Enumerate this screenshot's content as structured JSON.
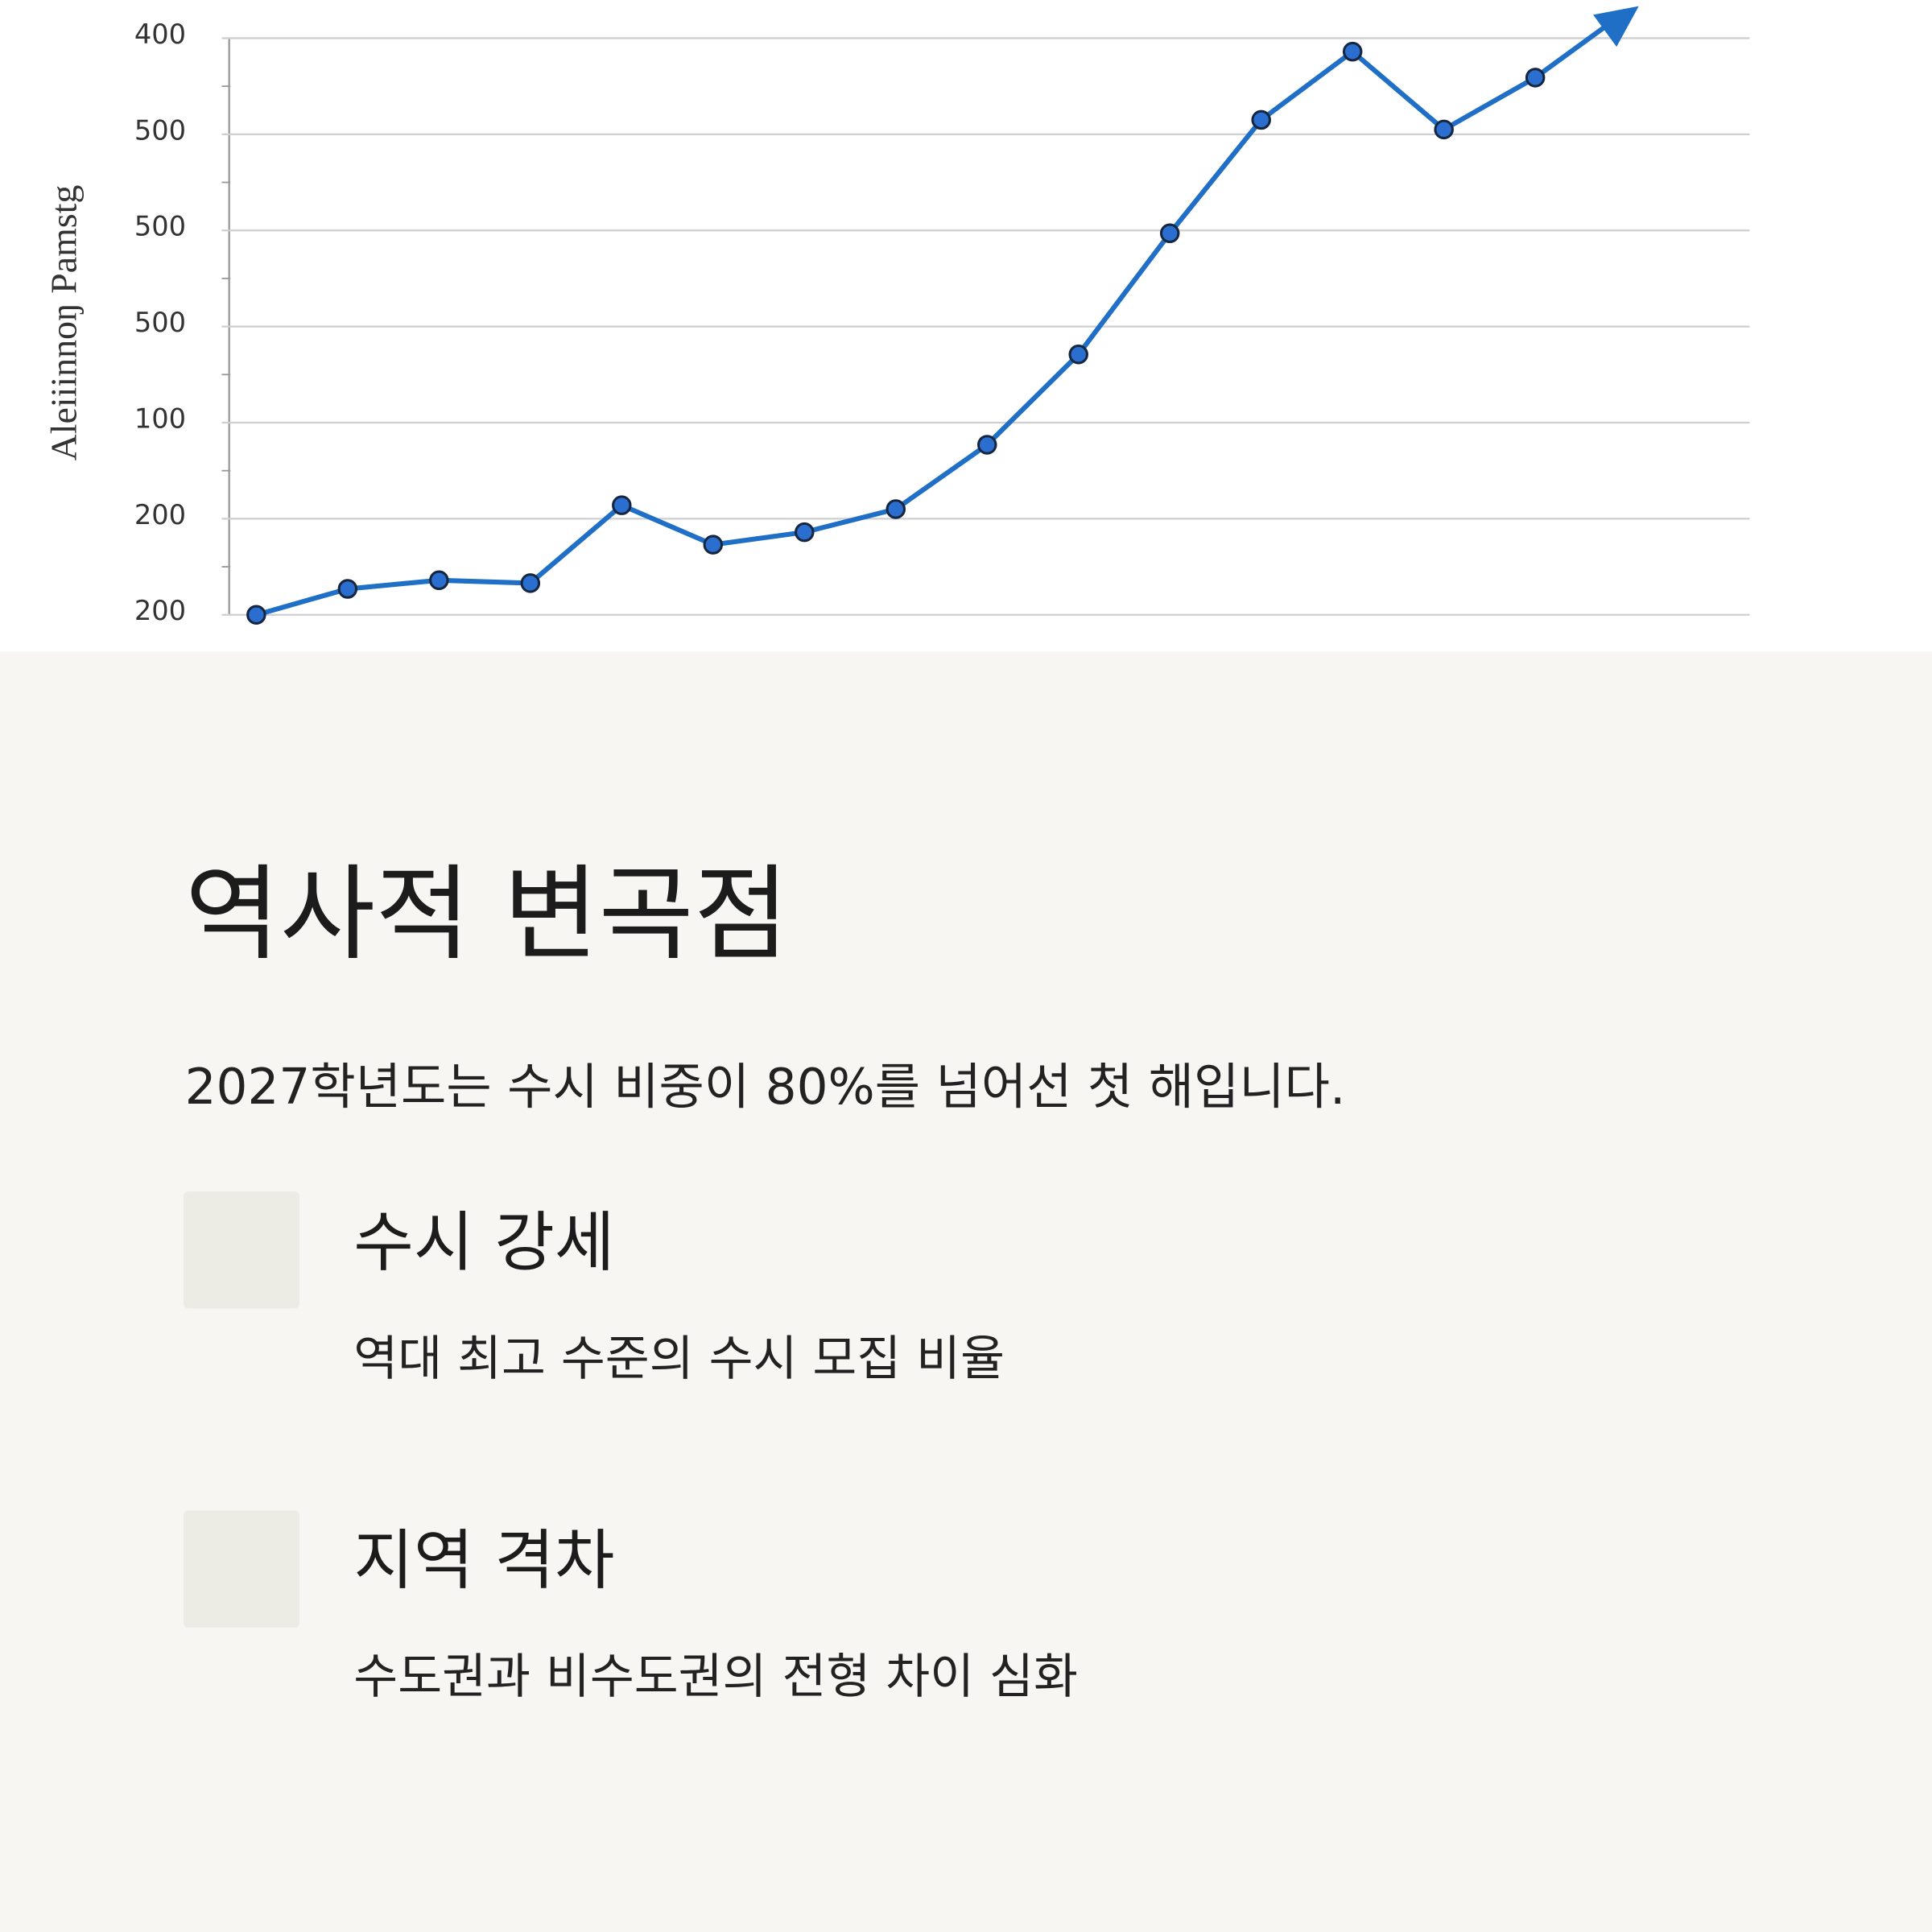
{
  "chart_data": {
    "type": "line",
    "y_label": "Aleiiinnoŋ Pamstg",
    "categories": [
      null,
      null,
      null,
      null,
      null,
      null,
      null,
      null,
      null,
      null,
      null,
      null,
      null,
      null,
      null
    ],
    "series": [
      {
        "name": null,
        "color": "#1f6fc6",
        "values": [
          0,
          0.27,
          0.36,
          0.33,
          1.14,
          0.73,
          0.86,
          1.1,
          1.77,
          2.71,
          3.97,
          5.15,
          5.86,
          5.05,
          5.59
        ]
      }
    ],
    "ylim": [
      0,
      6
    ],
    "yticks": [
      {
        "value": 0,
        "label": "200"
      },
      {
        "value": 1,
        "label": "200"
      },
      {
        "value": 2,
        "label": "100"
      },
      {
        "value": 3,
        "label": "500"
      },
      {
        "value": 4,
        "label": "500"
      },
      {
        "value": 5,
        "label": "500"
      },
      {
        "value": 6,
        "label": "400"
      }
    ],
    "grid": true
  },
  "heading": "역사적 변곡점",
  "subtitle": "2027학년도는 수시 비중이 80%를 넘어선 첫 해입니다.",
  "items": [
    {
      "title": "수시 강세",
      "description": "역대 최고 수준의 수시 모집 비율"
    },
    {
      "title": "지역 격차",
      "description": "수도권과 비수도권의 전형 차이 심화"
    }
  ]
}
